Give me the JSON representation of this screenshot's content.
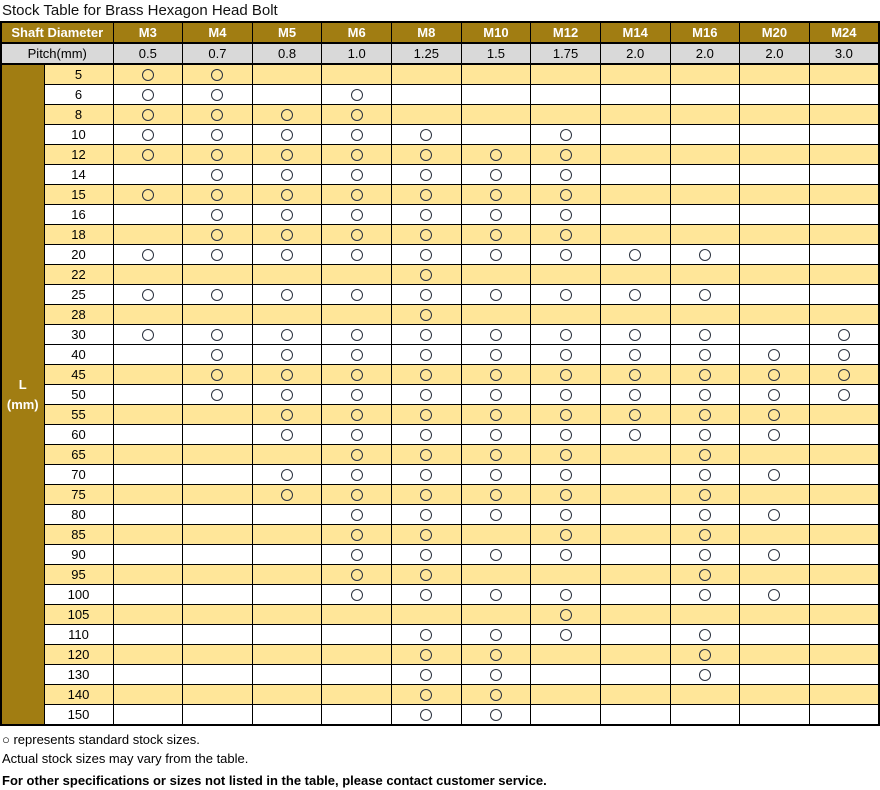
{
  "title": "Stock Table for Brass Hexagon Head Bolt",
  "colors": {
    "brass": "#A17D12",
    "shaded_row": "#FFE699",
    "pitch_row": "#D9D9D9",
    "marker_outline": "#2C3340"
  },
  "table": {
    "corner_header": "Shaft Diameter",
    "pitch_header": "Pitch(mm)",
    "l_axis_label_line1": "L",
    "l_axis_label_line2": "(mm)",
    "stock_marker_meaning": "standard stock size available",
    "columns": [
      "M3",
      "M4",
      "M5",
      "M6",
      "M8",
      "M10",
      "M12",
      "M14",
      "M16",
      "M20",
      "M24"
    ],
    "pitches": [
      "0.5",
      "0.7",
      "0.8",
      "1.0",
      "1.25",
      "1.5",
      "1.75",
      "2.0",
      "2.0",
      "2.0",
      "3.0"
    ],
    "rows": [
      {
        "l": "5",
        "shaded": true,
        "stock": [
          1,
          1,
          0,
          0,
          0,
          0,
          0,
          0,
          0,
          0,
          0
        ]
      },
      {
        "l": "6",
        "shaded": false,
        "stock": [
          1,
          1,
          0,
          1,
          0,
          0,
          0,
          0,
          0,
          0,
          0
        ]
      },
      {
        "l": "8",
        "shaded": true,
        "stock": [
          1,
          1,
          1,
          1,
          0,
          0,
          0,
          0,
          0,
          0,
          0
        ]
      },
      {
        "l": "10",
        "shaded": false,
        "stock": [
          1,
          1,
          1,
          1,
          1,
          0,
          1,
          0,
          0,
          0,
          0
        ]
      },
      {
        "l": "12",
        "shaded": true,
        "stock": [
          1,
          1,
          1,
          1,
          1,
          1,
          1,
          0,
          0,
          0,
          0
        ]
      },
      {
        "l": "14",
        "shaded": false,
        "stock": [
          0,
          1,
          1,
          1,
          1,
          1,
          1,
          0,
          0,
          0,
          0
        ]
      },
      {
        "l": "15",
        "shaded": true,
        "stock": [
          1,
          1,
          1,
          1,
          1,
          1,
          1,
          0,
          0,
          0,
          0
        ]
      },
      {
        "l": "16",
        "shaded": false,
        "stock": [
          0,
          1,
          1,
          1,
          1,
          1,
          1,
          0,
          0,
          0,
          0
        ]
      },
      {
        "l": "18",
        "shaded": true,
        "stock": [
          0,
          1,
          1,
          1,
          1,
          1,
          1,
          0,
          0,
          0,
          0
        ]
      },
      {
        "l": "20",
        "shaded": false,
        "stock": [
          1,
          1,
          1,
          1,
          1,
          1,
          1,
          1,
          1,
          0,
          0
        ]
      },
      {
        "l": "22",
        "shaded": true,
        "stock": [
          0,
          0,
          0,
          0,
          1,
          0,
          0,
          0,
          0,
          0,
          0
        ]
      },
      {
        "l": "25",
        "shaded": false,
        "stock": [
          1,
          1,
          1,
          1,
          1,
          1,
          1,
          1,
          1,
          0,
          0
        ]
      },
      {
        "l": "28",
        "shaded": true,
        "stock": [
          0,
          0,
          0,
          0,
          1,
          0,
          0,
          0,
          0,
          0,
          0
        ]
      },
      {
        "l": "30",
        "shaded": false,
        "stock": [
          1,
          1,
          1,
          1,
          1,
          1,
          1,
          1,
          1,
          0,
          1
        ]
      },
      {
        "l": "40",
        "shaded": false,
        "stock": [
          0,
          1,
          1,
          1,
          1,
          1,
          1,
          1,
          1,
          1,
          1
        ]
      },
      {
        "l": "45",
        "shaded": true,
        "stock": [
          0,
          1,
          1,
          1,
          1,
          1,
          1,
          1,
          1,
          1,
          1
        ]
      },
      {
        "l": "50",
        "shaded": false,
        "stock": [
          0,
          1,
          1,
          1,
          1,
          1,
          1,
          1,
          1,
          1,
          1
        ]
      },
      {
        "l": "55",
        "shaded": true,
        "stock": [
          0,
          0,
          1,
          1,
          1,
          1,
          1,
          1,
          1,
          1,
          0
        ]
      },
      {
        "l": "60",
        "shaded": false,
        "stock": [
          0,
          0,
          1,
          1,
          1,
          1,
          1,
          1,
          1,
          1,
          0
        ]
      },
      {
        "l": "65",
        "shaded": true,
        "stock": [
          0,
          0,
          0,
          1,
          1,
          1,
          1,
          0,
          1,
          0,
          0
        ]
      },
      {
        "l": "70",
        "shaded": false,
        "stock": [
          0,
          0,
          1,
          1,
          1,
          1,
          1,
          0,
          1,
          1,
          0
        ]
      },
      {
        "l": "75",
        "shaded": true,
        "stock": [
          0,
          0,
          1,
          1,
          1,
          1,
          1,
          0,
          1,
          0,
          0
        ]
      },
      {
        "l": "80",
        "shaded": false,
        "stock": [
          0,
          0,
          0,
          1,
          1,
          1,
          1,
          0,
          1,
          1,
          0
        ]
      },
      {
        "l": "85",
        "shaded": true,
        "stock": [
          0,
          0,
          0,
          1,
          1,
          0,
          1,
          0,
          1,
          0,
          0
        ]
      },
      {
        "l": "90",
        "shaded": false,
        "stock": [
          0,
          0,
          0,
          1,
          1,
          1,
          1,
          0,
          1,
          1,
          0
        ]
      },
      {
        "l": "95",
        "shaded": true,
        "stock": [
          0,
          0,
          0,
          1,
          1,
          0,
          0,
          0,
          1,
          0,
          0
        ]
      },
      {
        "l": "100",
        "shaded": false,
        "stock": [
          0,
          0,
          0,
          1,
          1,
          1,
          1,
          0,
          1,
          1,
          0
        ]
      },
      {
        "l": "105",
        "shaded": true,
        "stock": [
          0,
          0,
          0,
          0,
          0,
          0,
          1,
          0,
          0,
          0,
          0
        ]
      },
      {
        "l": "110",
        "shaded": false,
        "stock": [
          0,
          0,
          0,
          0,
          1,
          1,
          1,
          0,
          1,
          0,
          0
        ]
      },
      {
        "l": "120",
        "shaded": true,
        "stock": [
          0,
          0,
          0,
          0,
          1,
          1,
          0,
          0,
          1,
          0,
          0
        ]
      },
      {
        "l": "130",
        "shaded": false,
        "stock": [
          0,
          0,
          0,
          0,
          1,
          1,
          0,
          0,
          1,
          0,
          0
        ]
      },
      {
        "l": "140",
        "shaded": true,
        "stock": [
          0,
          0,
          0,
          0,
          1,
          1,
          0,
          0,
          0,
          0,
          0
        ]
      },
      {
        "l": "150",
        "shaded": false,
        "stock": [
          0,
          0,
          0,
          0,
          1,
          1,
          0,
          0,
          0,
          0,
          0
        ]
      }
    ]
  },
  "footnotes": [
    {
      "text": "○ represents standard stock sizes.",
      "bold": false
    },
    {
      "text": "Actual stock sizes may vary from the table.",
      "bold": false
    },
    {
      "text": "For other specifications or sizes not listed in the table, please contact customer service.",
      "bold": true
    }
  ]
}
